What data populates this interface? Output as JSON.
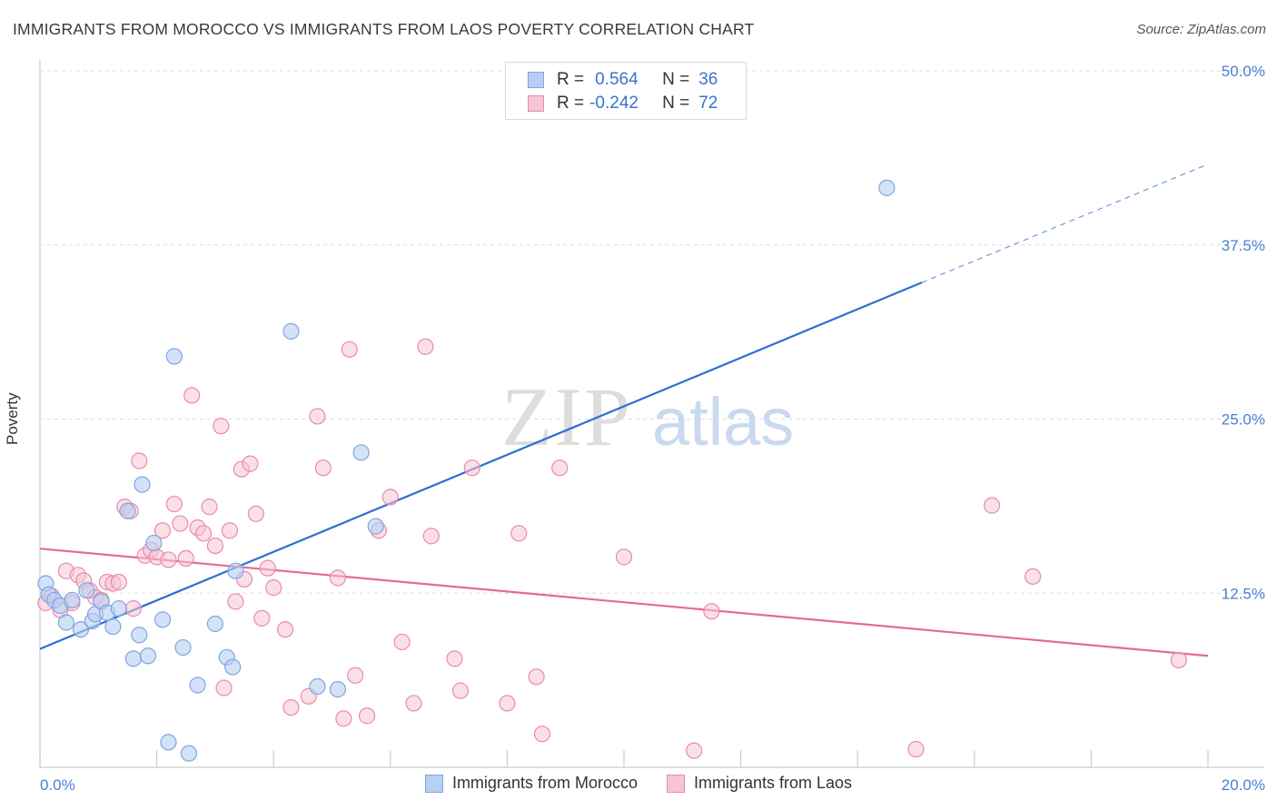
{
  "title": "IMMIGRANTS FROM MOROCCO VS IMMIGRANTS FROM LAOS POVERTY CORRELATION CHART",
  "source": "Source: ZipAtlas.com",
  "watermark": {
    "zip": "ZIP",
    "atlas": "atlas"
  },
  "legend_top": {
    "row1": {
      "r_label": "R =",
      "r_value": "0.564",
      "n_label": "N =",
      "n_value": "36"
    },
    "row2": {
      "r_label": "R =",
      "r_value": "-0.242",
      "n_label": "N =",
      "n_value": "72"
    }
  },
  "colors": {
    "blue_fill": "#b7cff3",
    "blue_stroke": "#7fa6e0",
    "blue_line": "#2e6fcf",
    "pink_fill": "#f7c4d3",
    "pink_stroke": "#e98aab",
    "pink_line": "#e46a95",
    "tick_text": "#4a7fd0",
    "grid": "#dddddd"
  },
  "chart_data": {
    "type": "scatter",
    "title": "IMMIGRANTS FROM MOROCCO VS IMMIGRANTS FROM LAOS POVERTY CORRELATION CHART",
    "xlabel": "",
    "ylabel": "Poverty",
    "xlim": [
      0,
      20
    ],
    "ylim": [
      0,
      50
    ],
    "x_tick_labels": [
      "0.0%",
      "20.0%"
    ],
    "y_ticks": [
      12.5,
      25,
      37.5,
      50
    ],
    "y_tick_labels": [
      "12.5%",
      "25.0%",
      "37.5%",
      "50.0%"
    ],
    "grid": true,
    "legend_position": "top-center",
    "series": [
      {
        "name": "Immigrants from Morocco",
        "color": "#b7cff3",
        "r": 0.564,
        "n": 36,
        "trend": {
          "x0": 0,
          "y0": 8.5,
          "x1": 15.1,
          "y1": 34.8,
          "dash_x1": 20,
          "dash_y1": 43.3
        },
        "points": [
          [
            0.1,
            13.2
          ],
          [
            0.15,
            12.4
          ],
          [
            0.25,
            12.0
          ],
          [
            0.35,
            11.6
          ],
          [
            0.45,
            10.4
          ],
          [
            0.55,
            12.0
          ],
          [
            0.7,
            9.9
          ],
          [
            0.8,
            12.7
          ],
          [
            0.9,
            10.5
          ],
          [
            0.95,
            11.0
          ],
          [
            1.05,
            11.9
          ],
          [
            1.15,
            11.1
          ],
          [
            1.25,
            10.1
          ],
          [
            1.35,
            11.4
          ],
          [
            1.5,
            18.4
          ],
          [
            1.6,
            7.8
          ],
          [
            1.7,
            9.5
          ],
          [
            1.75,
            20.3
          ],
          [
            1.85,
            8.0
          ],
          [
            1.95,
            16.1
          ],
          [
            2.1,
            10.6
          ],
          [
            2.2,
            1.8
          ],
          [
            2.3,
            29.5
          ],
          [
            2.45,
            8.6
          ],
          [
            2.55,
            1.0
          ],
          [
            2.7,
            5.9
          ],
          [
            3.0,
            10.3
          ],
          [
            3.2,
            7.9
          ],
          [
            3.3,
            7.2
          ],
          [
            3.35,
            14.1
          ],
          [
            4.3,
            31.3
          ],
          [
            4.75,
            5.8
          ],
          [
            5.1,
            5.6
          ],
          [
            5.5,
            22.6
          ],
          [
            5.75,
            17.3
          ],
          [
            14.5,
            41.6
          ]
        ]
      },
      {
        "name": "Immigrants from Laos",
        "color": "#f7c4d3",
        "r": -0.242,
        "n": 72,
        "trend": {
          "x0": 0,
          "y0": 15.7,
          "x1": 20,
          "y1": 8.0
        },
        "points": [
          [
            0.1,
            11.8
          ],
          [
            0.2,
            12.3
          ],
          [
            0.35,
            11.3
          ],
          [
            0.45,
            14.1
          ],
          [
            0.55,
            11.8
          ],
          [
            0.65,
            13.8
          ],
          [
            0.75,
            13.4
          ],
          [
            0.85,
            12.7
          ],
          [
            0.95,
            12.2
          ],
          [
            1.05,
            12.0
          ],
          [
            1.15,
            13.3
          ],
          [
            1.25,
            13.2
          ],
          [
            1.35,
            13.3
          ],
          [
            1.45,
            18.7
          ],
          [
            1.55,
            18.4
          ],
          [
            1.6,
            11.4
          ],
          [
            1.7,
            22.0
          ],
          [
            1.8,
            15.2
          ],
          [
            1.9,
            15.6
          ],
          [
            2.0,
            15.1
          ],
          [
            2.1,
            17.0
          ],
          [
            2.2,
            14.9
          ],
          [
            2.3,
            18.9
          ],
          [
            2.4,
            17.5
          ],
          [
            2.5,
            15.0
          ],
          [
            2.6,
            26.7
          ],
          [
            2.7,
            17.2
          ],
          [
            2.8,
            16.8
          ],
          [
            2.9,
            18.7
          ],
          [
            3.0,
            15.9
          ],
          [
            3.1,
            24.5
          ],
          [
            3.15,
            5.7
          ],
          [
            3.25,
            17.0
          ],
          [
            3.35,
            11.9
          ],
          [
            3.45,
            21.4
          ],
          [
            3.5,
            13.5
          ],
          [
            3.6,
            21.8
          ],
          [
            3.7,
            18.2
          ],
          [
            3.8,
            10.7
          ],
          [
            3.9,
            14.3
          ],
          [
            4.0,
            12.9
          ],
          [
            4.2,
            9.9
          ],
          [
            4.3,
            4.3
          ],
          [
            4.6,
            5.1
          ],
          [
            4.75,
            25.2
          ],
          [
            4.85,
            21.5
          ],
          [
            5.1,
            13.6
          ],
          [
            5.2,
            3.5
          ],
          [
            5.3,
            30.0
          ],
          [
            5.4,
            6.6
          ],
          [
            5.6,
            3.7
          ],
          [
            5.8,
            17.0
          ],
          [
            6.0,
            19.4
          ],
          [
            6.2,
            9.0
          ],
          [
            6.4,
            4.6
          ],
          [
            6.6,
            30.2
          ],
          [
            6.7,
            16.6
          ],
          [
            7.1,
            7.8
          ],
          [
            7.2,
            5.5
          ],
          [
            7.4,
            21.5
          ],
          [
            8.0,
            4.6
          ],
          [
            8.2,
            16.8
          ],
          [
            8.5,
            6.5
          ],
          [
            8.6,
            2.4
          ],
          [
            8.9,
            21.5
          ],
          [
            10.0,
            15.1
          ],
          [
            11.2,
            1.2
          ],
          [
            11.5,
            11.2
          ],
          [
            15.0,
            1.3
          ],
          [
            16.3,
            18.8
          ],
          [
            17.0,
            13.7
          ],
          [
            19.5,
            7.7
          ]
        ]
      }
    ]
  },
  "legend_bottom": [
    "Immigrants from Morocco",
    "Immigrants from Laos"
  ]
}
